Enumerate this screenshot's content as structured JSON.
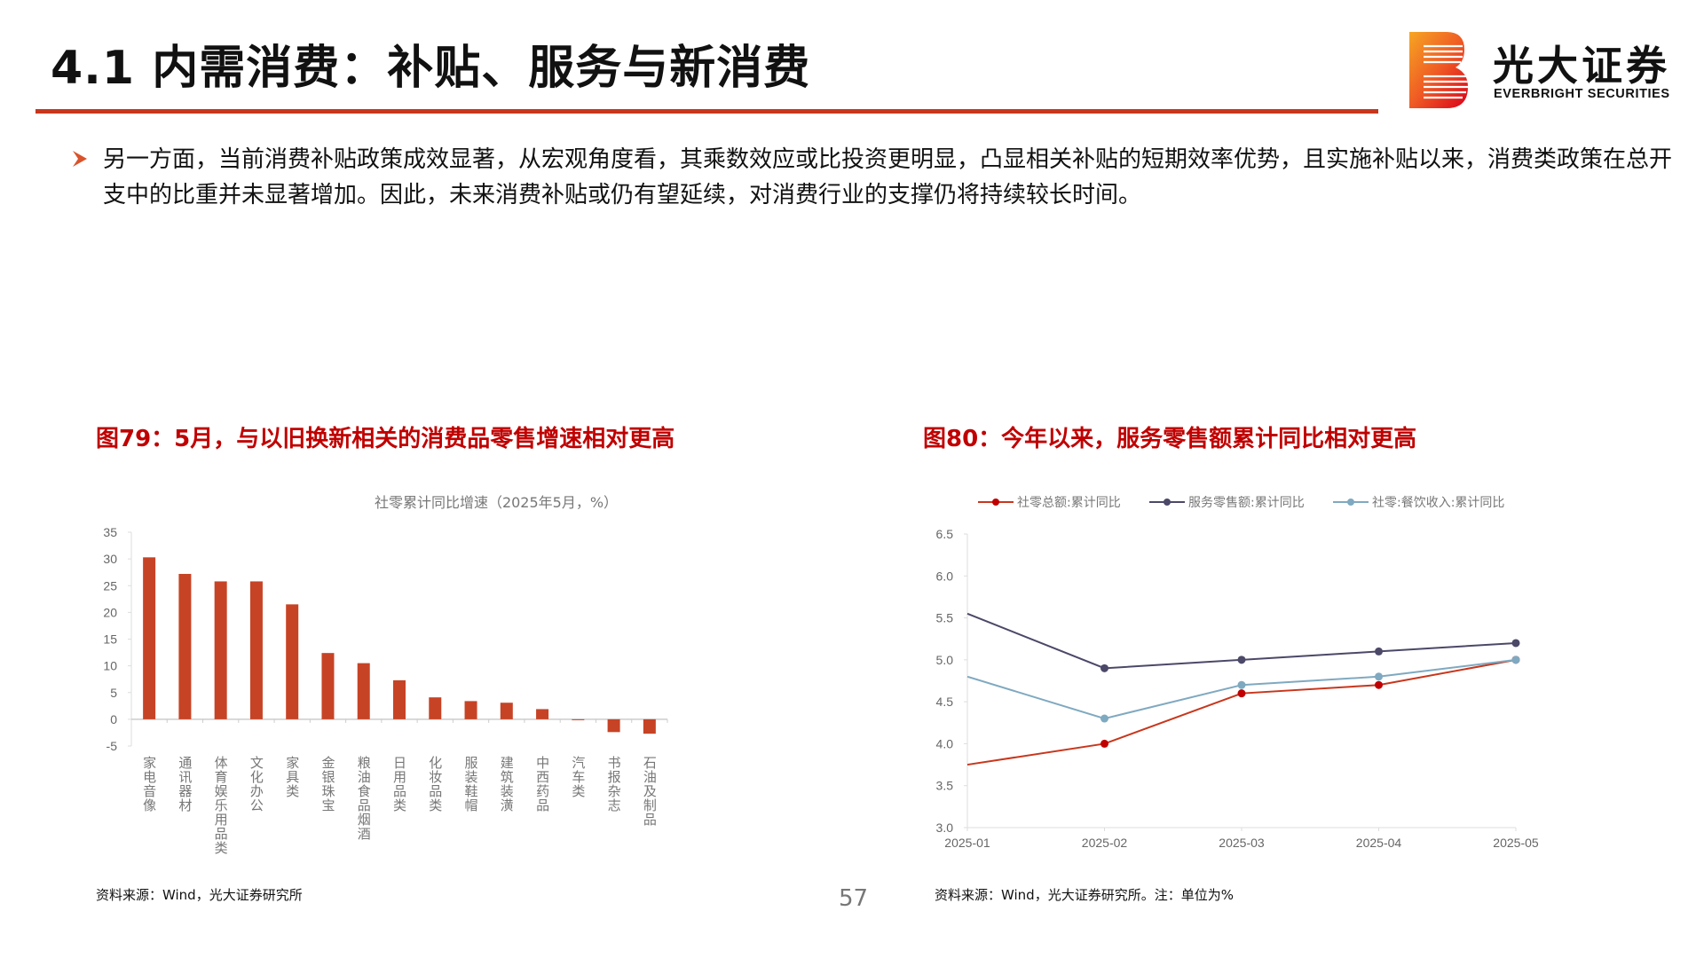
{
  "header": {
    "title": "4.1 内需消费：补贴、服务与新消费",
    "logo_cn": "光大证券",
    "logo_en": "EVERBRIGHT SECURITIES"
  },
  "body": {
    "bullet": "另一方面，当前消费补贴政策成效显著，从宏观角度看，其乘数效应或比投资更明显，凸显相关补贴的短期效率优势，且实施补贴以来，消费类政策在总开支中的比重并未显著增加。因此，未来消费补贴或仍有望延续，对消费行业的支撑仍将持续较长时间。"
  },
  "figures": {
    "fig79_title": "图79：5月，与以旧换新相关的消费品零售增速相对更高",
    "fig79_source": "资料来源：Wind，光大证券研究所",
    "fig80_title": "图80：今年以来，服务零售额累计同比相对更高",
    "fig80_source": "资料来源：Wind，光大证券研究所。注：单位为%"
  },
  "page_number": "57",
  "colors": {
    "accent": "#c8361c",
    "bar": "#c74325",
    "title_red": "#c00000"
  },
  "chart_data": [
    {
      "type": "bar",
      "title": "社零累计同比增速（2025年5月，%）",
      "categories": [
        "家电音像",
        "通讯器材",
        "体育娱乐用品类",
        "文化办公",
        "家具类",
        "金银珠宝",
        "粮油食品烟酒",
        "日用品类",
        "化妆品类",
        "服装鞋帽",
        "建筑装潢",
        "中西药品",
        "汽车类",
        "书报杂志",
        "石油及制品"
      ],
      "values": [
        30.3,
        27.2,
        25.8,
        25.8,
        21.5,
        12.4,
        10.5,
        7.3,
        4.1,
        3.4,
        3.1,
        1.9,
        -0.1,
        -2.4,
        -2.7
      ],
      "ylim": [
        -5,
        35
      ],
      "yticks": [
        "-5",
        "0",
        "5",
        "10",
        "15",
        "20",
        "25",
        "30",
        "35"
      ],
      "xlabel": "",
      "ylabel": "",
      "grid": false
    },
    {
      "type": "line",
      "x": [
        "2025-01",
        "2025-02",
        "2025-03",
        "2025-04",
        "2025-05"
      ],
      "series": [
        {
          "name": "社零总额:累计同比",
          "values": [
            3.75,
            4.0,
            4.6,
            4.7,
            5.0
          ],
          "color": "#c8361c",
          "marker": "#c00000"
        },
        {
          "name": "服务零售额:累计同比",
          "values": [
            5.55,
            4.9,
            5.0,
            5.1,
            5.2
          ],
          "color": "#4b4868",
          "marker": "#4b4868"
        },
        {
          "name": "社零:餐饮收入:累计同比",
          "values": [
            4.8,
            4.3,
            4.7,
            4.8,
            5.0
          ],
          "color": "#7fa9c0",
          "marker": "#7fa9c0"
        }
      ],
      "ylim": [
        3.0,
        6.5
      ],
      "yticks": [
        "3.0",
        "3.5",
        "4.0",
        "4.5",
        "5.0",
        "5.5",
        "6.0",
        "6.5"
      ],
      "legend": "top",
      "grid": false
    }
  ]
}
